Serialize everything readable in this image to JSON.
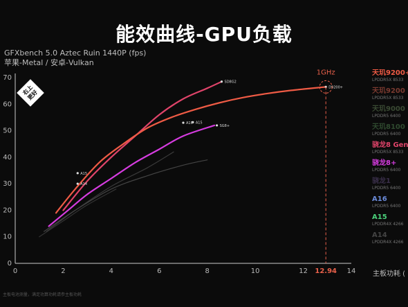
{
  "header": {
    "title": "能效曲线-GPU负载",
    "subtitle_line1": "GFXbench 5.0 Aztec Ruin 1440P (fps)",
    "subtitle_line2": "苹果-Metal / 安卓-Vulkan",
    "badge": "右上\n更好"
  },
  "annotation": {
    "label": "1GHz",
    "x_value": "12.94"
  },
  "footnote": "主板电池测量，满足功算功耗请参主板功耗",
  "colors": {
    "bg": "#0b0b0b",
    "axis": "#cccccc",
    "orange": "#e8604a",
    "red": "#e0446a",
    "magenta": "#d63ce0",
    "annotation": "#e8604a"
  },
  "legend": [
    {
      "name": "天玑9200+",
      "sub": "LPDDR5X 8533",
      "color": "#ef5b45"
    },
    {
      "name": "天玑9200",
      "sub": "LPDDR5X 8533",
      "color": "#7a3a30"
    },
    {
      "name": "天玑9000",
      "sub": "LPDDR5 6400",
      "color": "#3a4a33"
    },
    {
      "name": "天玑8100",
      "sub": "LPDDR5 6400",
      "color": "#2f4a2f"
    },
    {
      "name": "骁龙8 Gen",
      "sub": "LPDDR5X 8533",
      "color": "#e0446a"
    },
    {
      "name": "骁龙8+",
      "sub": "LPDDR5 6400",
      "color": "#d63ce0"
    },
    {
      "name": "骁龙1",
      "sub": "LPDDR5 6400",
      "color": "#3a2f4a"
    },
    {
      "name": "A16",
      "sub": "LPDDR5 6400",
      "color": "#6a8ad8"
    },
    {
      "name": "A15",
      "sub": "LPDDR4X 4266",
      "color": "#4ad07a"
    },
    {
      "name": "A14",
      "sub": "LPDDR4X 4266",
      "color": "#444444"
    }
  ],
  "x_unit": "主板功耗 (",
  "chart_data": {
    "type": "line",
    "title": "能效曲线-GPU负载",
    "xlabel": "主板功耗",
    "ylabel": "GFXbench 5.0 Aztec Ruin 1440P (fps)",
    "xlim": [
      0,
      14
    ],
    "ylim": [
      0,
      70
    ],
    "xticks": [
      0,
      2,
      4,
      6,
      8,
      10,
      12,
      14
    ],
    "yticks": [
      0,
      10,
      20,
      30,
      40,
      50,
      60,
      70
    ],
    "grid": false,
    "legend_position": "right",
    "series": [
      {
        "name": "D9200+",
        "color": "#ef5b45",
        "x": [
          1.7,
          2.5,
          3.5,
          4.5,
          5.5,
          6.5,
          7.5,
          8.5,
          9.5,
          10.5,
          11.5,
          12.94
        ],
        "y": [
          19,
          28,
          38,
          45,
          51,
          55,
          58,
          60.5,
          62.5,
          64,
          65.2,
          66.5
        ]
      },
      {
        "name": "SD8G2",
        "color": "#e0446a",
        "x": [
          2.0,
          3.0,
          4.0,
          5.0,
          6.0,
          7.0,
          8.0,
          8.6
        ],
        "y": [
          20,
          31,
          40,
          48,
          56,
          62,
          66,
          68.5
        ]
      },
      {
        "name": "SG8+",
        "color": "#d63ce0",
        "x": [
          1.4,
          2.2,
          3.0,
          4.0,
          5.0,
          6.0,
          7.0,
          8.3
        ],
        "y": [
          14,
          20,
          26,
          32,
          38,
          43,
          48,
          52
        ]
      },
      {
        "name": "A16",
        "color": "#444444",
        "x": [
          1.2,
          2.5,
          4.0,
          5.5,
          7.0,
          8.0
        ],
        "y": [
          12,
          20,
          28,
          33,
          37,
          39
        ]
      },
      {
        "name": "A15",
        "color": "#3a3a3a",
        "x": [
          1.3,
          2.5,
          4.0,
          5.5,
          6.6
        ],
        "y": [
          12,
          20,
          29,
          36,
          42
        ]
      },
      {
        "name": "A14",
        "color": "#333333",
        "x": [
          1.0,
          2.0,
          3.0,
          4.2
        ],
        "y": [
          10,
          16,
          22,
          28
        ]
      }
    ],
    "point_labels": [
      {
        "text": "SD8G2",
        "x": 8.6,
        "y": 68.5
      },
      {
        "text": "D9200+",
        "x": 12.94,
        "y": 66.5
      },
      {
        "text": "A16",
        "x": 7.0,
        "y": 53
      },
      {
        "text": "A15",
        "x": 7.4,
        "y": 53.2
      },
      {
        "text": "SG8+",
        "x": 8.4,
        "y": 52
      },
      {
        "text": "A15",
        "x": 2.6,
        "y": 34
      },
      {
        "text": "A14",
        "x": 2.6,
        "y": 30
      }
    ]
  }
}
